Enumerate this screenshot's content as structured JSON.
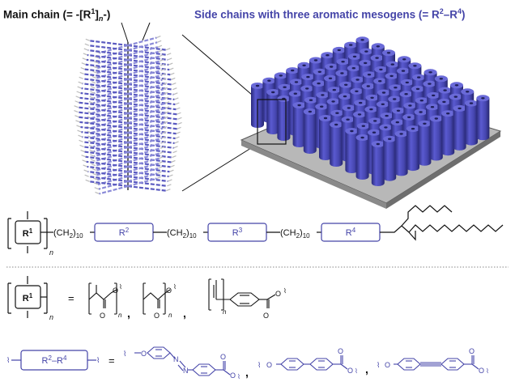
{
  "header": {
    "main_chain_pre": "Main chain (= -[R",
    "main_chain_sup": "1",
    "main_chain_mid": "]",
    "main_chain_sub": "n",
    "main_chain_post": "-)",
    "side_chains_pre": "Side chains with three aromatic mesogens (= R",
    "side_chains_sup1": "2",
    "side_chains_dash": "–R",
    "side_chains_sup2": "4",
    "side_chains_post": ")"
  },
  "row1": {
    "r1": "R1",
    "ch2_1": "(CH2)10",
    "r2": "R2",
    "ch2_2": "(CH2)10",
    "r3": "R3",
    "ch2_3": "(CH2)10",
    "r4": "R4",
    "n": "n"
  },
  "row2": {
    "r1": "R1",
    "n": "n",
    "eq": "=",
    "comma1": ",",
    "comma2": ","
  },
  "row3": {
    "r24": "R2–R4",
    "eq": "=",
    "comma1": ",",
    "comma2": ","
  },
  "colors": {
    "blue": "#4444a8",
    "black": "#111111",
    "substrate": "#a8a8a8"
  }
}
